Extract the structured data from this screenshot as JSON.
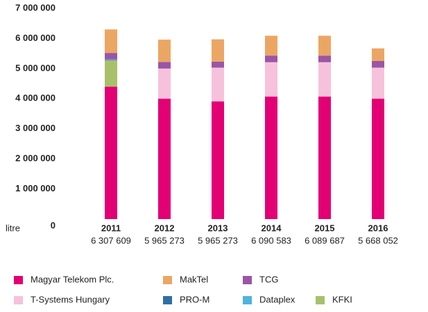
{
  "chart_data": {
    "type": "stacked_bar",
    "y_label": "litre",
    "categories": [
      "2011",
      "2012",
      "2013",
      "2014",
      "2015",
      "2016"
    ],
    "total_labels": [
      "6 307 609",
      "5 965 273",
      "5 965 273",
      "6 090 583",
      "6 089 687",
      "5 668 052"
    ],
    "series": [
      {
        "name": "Magyar Telekom Plc.",
        "color": "#e20074",
        "values": [
          4400000,
          4000000,
          3910000,
          4070000,
          4070000,
          4000000
        ]
      },
      {
        "name": "T-Systems Hungary",
        "color": "#f7c1dc",
        "values": [
          null,
          1000000,
          1120000,
          1140000,
          1140000,
          1030000
        ]
      },
      {
        "name": "KFKI",
        "color": "#a9c06b",
        "values": [
          870000,
          null,
          null,
          null,
          null,
          null
        ]
      },
      {
        "name": "PRO-M",
        "color": "#2f6fa8",
        "values": [
          20000,
          null,
          null,
          null,
          null,
          null
        ]
      },
      {
        "name": "Dataplex",
        "color": "#4fb3e0",
        "values": [
          20000,
          null,
          null,
          null,
          null,
          null
        ]
      },
      {
        "name": "TCG",
        "color": "#9b55a6",
        "values": [
          210000,
          220000,
          200000,
          220000,
          220000,
          220000
        ]
      },
      {
        "name": "MakTel",
        "color": "#eca664",
        "values": [
          780000,
          740000,
          740000,
          660000,
          660000,
          420000
        ]
      }
    ],
    "ylim": [
      0,
      7000000
    ],
    "yticks": [
      0,
      {
        "value": 1000000,
        "label": "1 000 000"
      },
      {
        "value": 2000000,
        "label": "2 000 000"
      },
      {
        "value": 3000000,
        "label": "3 000 000"
      },
      {
        "value": 4000000,
        "label": "4 000 000"
      },
      {
        "value": 5000000,
        "label": "5 000 000"
      },
      {
        "value": 6000000,
        "label": "6 000 000"
      },
      {
        "value": 7000000,
        "label": "7 000 000"
      }
    ],
    "grid": false
  }
}
